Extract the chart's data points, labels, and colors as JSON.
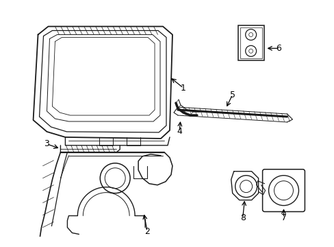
{
  "bg_color": "#ffffff",
  "line_color": "#1a1a1a",
  "fig_width": 4.89,
  "fig_height": 3.6
}
